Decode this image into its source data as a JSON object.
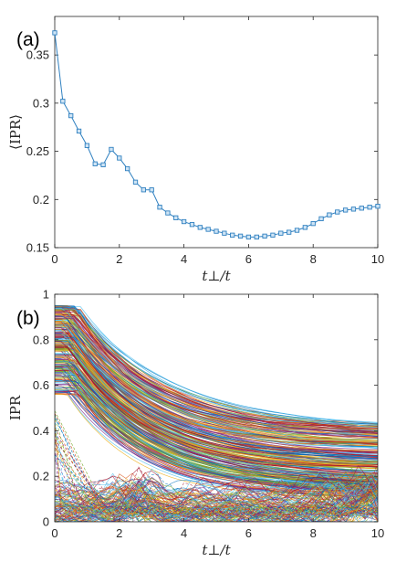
{
  "colors": {
    "series_a": "#2f80c0",
    "axes": "#262626",
    "palette_b": [
      "#0072bd",
      "#d95319",
      "#edb120",
      "#7e2f8e",
      "#77ac30",
      "#4dbeee",
      "#a2142f"
    ]
  },
  "chart_data": [
    {
      "type": "line",
      "panel_label": "(a)",
      "title": "",
      "xlabel": "t⊥/t",
      "ylabel": "⟨IPR⟩",
      "xlim": [
        0,
        10
      ],
      "ylim": [
        0.15,
        0.39
      ],
      "xticks": [
        0,
        2,
        4,
        6,
        8,
        10
      ],
      "yticks": [
        0.15,
        0.2,
        0.25,
        0.3,
        0.35
      ],
      "ytick_labels": [
        "0.15",
        "0.2",
        "0.25",
        "0.3",
        "0.35"
      ],
      "grid": false,
      "marker": "square",
      "series": [
        {
          "x": [
            0,
            0.25,
            0.5,
            0.75,
            1.0,
            1.25,
            1.5,
            1.75,
            2.0,
            2.25,
            2.5,
            2.75,
            3.0,
            3.25,
            3.5,
            3.75,
            4.0,
            4.25,
            4.5,
            4.75,
            5.0,
            5.25,
            5.5,
            5.75,
            6.0,
            6.25,
            6.5,
            6.75,
            7.0,
            7.25,
            7.5,
            7.75,
            8.0,
            8.25,
            8.5,
            8.75,
            9.0,
            9.25,
            9.5,
            9.75,
            10.0
          ],
          "values": [
            0.373,
            0.302,
            0.287,
            0.271,
            0.256,
            0.237,
            0.236,
            0.252,
            0.243,
            0.232,
            0.218,
            0.21,
            0.21,
            0.192,
            0.186,
            0.181,
            0.177,
            0.174,
            0.171,
            0.169,
            0.167,
            0.165,
            0.163,
            0.162,
            0.161,
            0.161,
            0.162,
            0.163,
            0.165,
            0.166,
            0.168,
            0.171,
            0.175,
            0.18,
            0.184,
            0.187,
            0.189,
            0.19,
            0.191,
            0.192,
            0.193
          ]
        }
      ]
    },
    {
      "type": "line",
      "panel_label": "(b)",
      "title": "",
      "xlabel": "t⊥/t",
      "ylabel": "IPR",
      "xlim": [
        0,
        10
      ],
      "ylim": [
        0,
        1
      ],
      "xticks": [
        0,
        2,
        4,
        6,
        8,
        10
      ],
      "yticks": [
        0,
        0.2,
        0.4,
        0.6,
        0.8,
        1
      ],
      "ytick_labels": [
        "0",
        "0.2",
        "0.4",
        "0.6",
        "0.8",
        "1"
      ],
      "grid": false,
      "upper_band": {
        "y_at_0": [
          0.55,
          0.95
        ],
        "y_at_10": [
          0.1,
          0.42
        ]
      },
      "lower_band": {
        "y_range": [
          0,
          0.2
        ],
        "x_range": [
          0,
          10
        ]
      }
    }
  ]
}
